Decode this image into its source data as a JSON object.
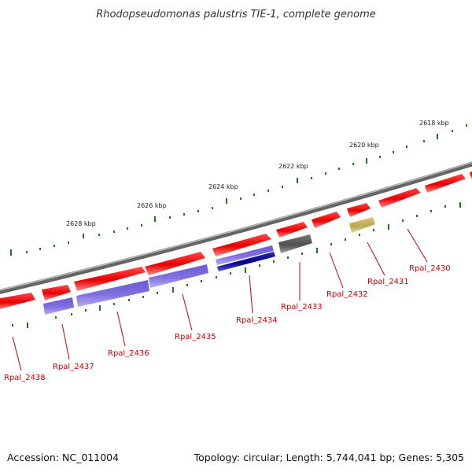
{
  "title": "Rhodopseudomonas palustris TIE-1, complete genome",
  "footer": {
    "accession": "Accession: NC_011004",
    "topology": "Topology: circular; Length: 5,744,041 bp; Genes: 5,305"
  },
  "ticks": [
    "2618 kbp",
    "2620 kbp",
    "2622 kbp",
    "2624 kbp",
    "2626 kbp",
    "2628 kbp"
  ],
  "genes": [
    "Rpal_2430",
    "Rpal_2431",
    "Rpal_2432",
    "Rpal_2433",
    "Rpal_2434",
    "Rpal_2435",
    "Rpal_2436",
    "Rpal_2437",
    "Rpal_2438"
  ],
  "colors": {
    "backbone": "#808080",
    "cds_forward": "#ff0000",
    "cds_reverse": "#7766dd",
    "cds_dark": "#000088",
    "rna_gray": "#606060",
    "olive": "#c8b860",
    "tick": "#1a7a1a",
    "label": "#cc0000"
  }
}
